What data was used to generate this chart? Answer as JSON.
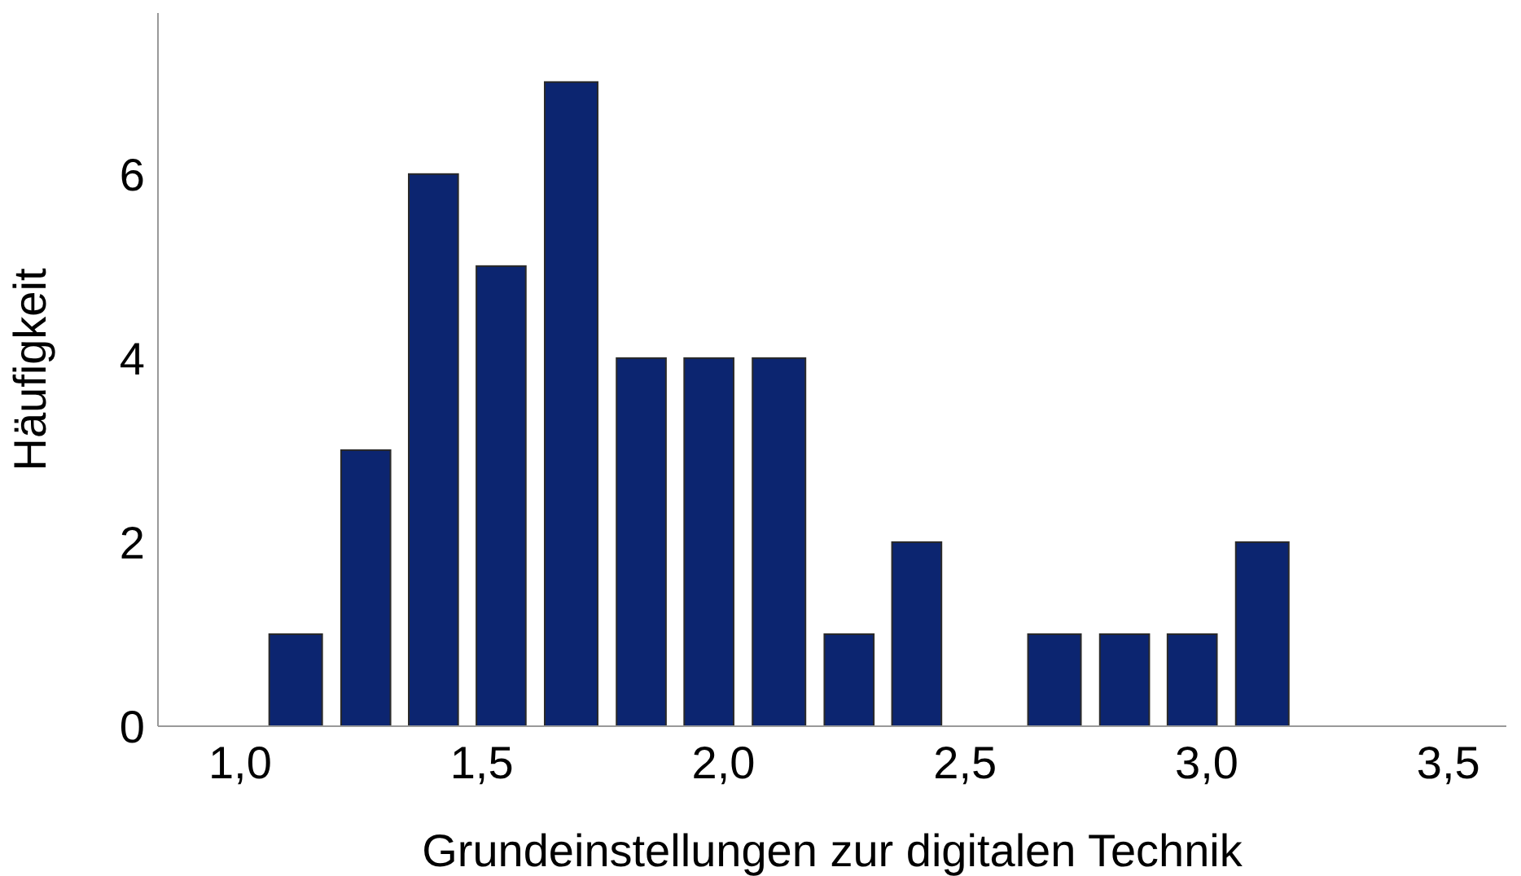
{
  "chart_data": {
    "type": "histogram",
    "xlabel": "Grundeinstellungen zur digitalen Technik",
    "ylabel": "Häufigkeit",
    "bins": [
      1.04,
      1.19,
      1.33,
      1.47,
      1.61,
      1.76,
      1.9,
      2.04,
      2.19,
      2.33,
      2.47,
      2.61,
      2.76,
      2.9,
      3.04,
      3.19
    ],
    "values": [
      1,
      3,
      6,
      5,
      7,
      4,
      4,
      4,
      1,
      2,
      0,
      1,
      1,
      1,
      2
    ],
    "color": "#0c2570",
    "xlim": [
      0.83,
      3.62
    ],
    "xticks": [
      {
        "value": 1,
        "label": "1,0"
      },
      {
        "value": 1.5,
        "label": "1,5"
      },
      {
        "value": 2,
        "label": "2,0"
      },
      {
        "value": 2.5,
        "label": "2,5"
      },
      {
        "value": 3,
        "label": "3,0"
      },
      {
        "value": 3.5,
        "label": "3,5"
      }
    ],
    "ylim": [
      0,
      7.75
    ],
    "yticks": [
      0,
      2,
      4,
      6
    ],
    "grid": false
  }
}
